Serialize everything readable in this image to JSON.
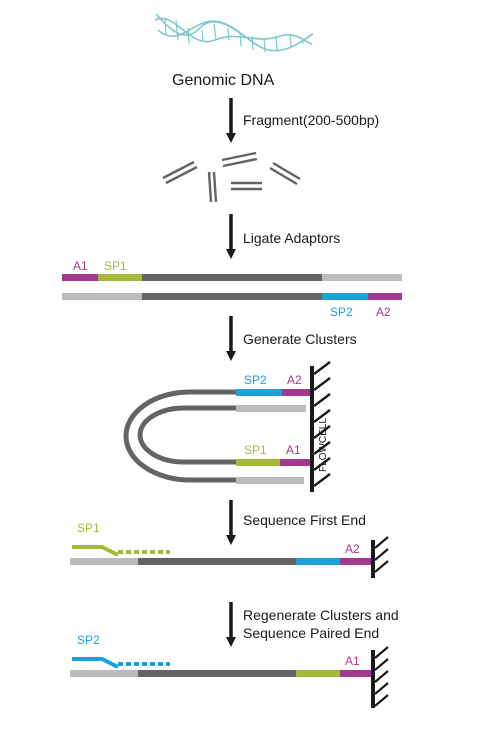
{
  "title": "Genomic DNA",
  "steps": {
    "fragment": "Fragment(200-500bp)",
    "ligate": "Ligate Adaptors",
    "generate": "Generate Clusters",
    "first_end": "Sequence First End",
    "paired_line1": "Regenerate Clusters and",
    "paired_line2": "Sequence Paired End"
  },
  "labels": {
    "a1": "A1",
    "a2": "A2",
    "sp1": "SP1",
    "sp2": "SP2",
    "flowcell": "FLOWCELL"
  },
  "colors": {
    "adaptor_a": "#a3388f",
    "primer_sp1": "#a6b83a",
    "primer_sp2": "#1ba3d9",
    "strand_dark": "#646464",
    "strand_light": "#bcbcbc",
    "arrow": "#1a1a1a",
    "dna_helix": "#7ec7cf"
  }
}
